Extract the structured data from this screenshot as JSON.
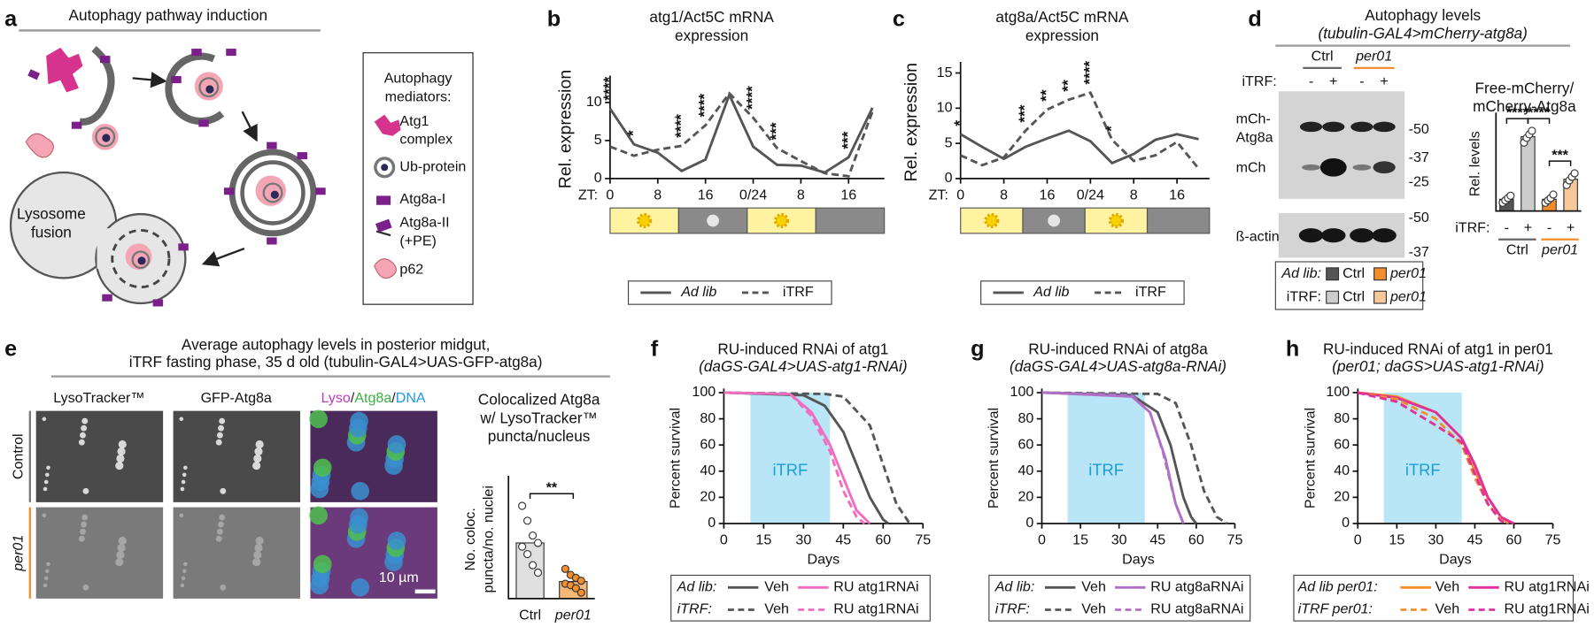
{
  "figure": {
    "panel_letters": [
      "a",
      "b",
      "c",
      "d",
      "e",
      "f",
      "g",
      "h"
    ],
    "a": {
      "title": "Autophagy pathway induction",
      "lysosome": [
        "Lysosome",
        "fusion"
      ],
      "legend_title": [
        "Autophagy",
        "mediators:"
      ],
      "legend_items": [
        [
          "Atg1",
          "complex"
        ],
        [
          "Ub-protein"
        ],
        [
          "Atg8a-I"
        ],
        [
          "Atg8a-II",
          "(+PE)"
        ],
        [
          "p62"
        ]
      ]
    },
    "d_blot": {
      "title": [
        "Autophagy levels",
        "(tubulin-GAL4>mCherry-atg8a)"
      ],
      "groups": [
        "Ctrl",
        "per01"
      ],
      "itrf_label": "iTRF:",
      "lanes": [
        "-",
        "+",
        "-",
        "+"
      ],
      "bands": [
        "mCh-",
        "Atg8a",
        "mCh",
        "ß-actin"
      ],
      "markers": [
        "-50",
        "-37",
        "-25",
        "-50",
        "-37"
      ]
    },
    "e_images": {
      "title": [
        "Average autophagy levels in posterior midgut,",
        "iTRF fasting phase, 35 d old (tubulin-GAL4>UAS-GFP-atg8a)"
      ],
      "columns": [
        "LysoTracker™",
        "GFP-Atg8a"
      ],
      "merge": [
        "Lyso",
        "/",
        "Atg8a",
        "/",
        "DNA"
      ],
      "rows": [
        "Control",
        "per01"
      ],
      "scale": "10 µm"
    }
  },
  "chart_data": [
    {
      "type": "line",
      "title": [
        "atg1/Act5C mRNA",
        "expression"
      ],
      "y_label": "Rel. expression",
      "x_label": "ZT:",
      "x": [
        0,
        4,
        8,
        12,
        16,
        20,
        24,
        28,
        32,
        36,
        40,
        44
      ],
      "xlim": [
        0,
        46
      ],
      "xticks": [
        0,
        8,
        16,
        {
          "value": 24,
          "label": "0/24"
        },
        {
          "value": 32,
          "label": "8"
        },
        {
          "value": 40,
          "label": "16"
        }
      ],
      "ylim": [
        0,
        13
      ],
      "yticks": [
        0,
        5,
        10
      ],
      "series": [
        {
          "name": "Ad lib",
          "color": "#555555",
          "dash": false,
          "values": [
            9.2,
            4.5,
            3.4,
            1.0,
            2.5,
            11.0,
            4.2,
            1.8,
            1.7,
            0.8,
            2.8,
            9.3
          ]
        },
        {
          "name": "iTRF",
          "color": "#555555",
          "dash": true,
          "values": [
            4.2,
            3.0,
            3.8,
            4.3,
            7.0,
            11.2,
            8.0,
            4.0,
            2.3,
            0.7,
            0.3,
            8.8
          ]
        }
      ],
      "annotations": [
        {
          "x": 0,
          "label": "****"
        },
        {
          "x": 4,
          "label": "*"
        },
        {
          "x": 12,
          "label": "****"
        },
        {
          "x": 16,
          "label": "****"
        },
        {
          "x": 24,
          "label": "****"
        },
        {
          "x": 28,
          "label": "***"
        },
        {
          "x": 40,
          "label": "***"
        }
      ]
    },
    {
      "type": "line",
      "title": [
        "atg8a/Act5C mRNA",
        "expression"
      ],
      "y_label": "Rel. expression",
      "x_label": "ZT:",
      "x": [
        0,
        4,
        8,
        12,
        16,
        20,
        24,
        28,
        32,
        36,
        40,
        44
      ],
      "xlim": [
        0,
        46
      ],
      "xticks": [
        0,
        8,
        16,
        {
          "value": 24,
          "label": "0/24"
        },
        {
          "value": 32,
          "label": "8"
        },
        {
          "value": 40,
          "label": "16"
        }
      ],
      "ylim": [
        0,
        16
      ],
      "yticks": [
        0,
        5,
        10,
        15
      ],
      "series": [
        {
          "name": "Ad lib",
          "color": "#555555",
          "dash": false,
          "values": [
            6.3,
            4.5,
            2.8,
            4.5,
            5.7,
            6.8,
            5.3,
            2.2,
            3.5,
            5.5,
            6.3,
            5.6
          ]
        },
        {
          "name": "iTRF",
          "color": "#555555",
          "dash": true,
          "values": [
            3.3,
            1.9,
            3.0,
            6.8,
            9.8,
            11.2,
            12.2,
            5.5,
            2.5,
            3.3,
            5.2,
            1.4
          ]
        }
      ],
      "annotations": [
        {
          "x": 0,
          "label": "*"
        },
        {
          "x": 12,
          "label": "***"
        },
        {
          "x": 16,
          "label": "**"
        },
        {
          "x": 20,
          "label": "**"
        },
        {
          "x": 24,
          "label": "****"
        },
        {
          "x": 28,
          "label": "*"
        }
      ]
    },
    {
      "type": "bar",
      "title": [
        "Free-mCherry/",
        "mCherry-Atg8a"
      ],
      "y_label": "Rel. levels",
      "x_label": "iTRF:",
      "categories": [
        "-",
        "+",
        "-",
        "+"
      ],
      "groups": [
        "Ctrl",
        "per01"
      ],
      "values": [
        1.0,
        6.3,
        1.0,
        2.7
      ],
      "colors": [
        "#555555",
        "#cccccc",
        "#f28e2b",
        "#f7c899"
      ],
      "ylim": [
        0,
        8
      ],
      "points": [
        [
          0.7,
          0.9,
          1.1,
          1.3
        ],
        [
          5.8,
          6.2,
          6.5,
          6.8
        ],
        [
          0.7,
          0.9,
          1.1,
          1.4
        ],
        [
          2.2,
          2.6,
          2.9,
          3.2
        ]
      ],
      "annotations": [
        {
          "from": 0,
          "to": 1,
          "label": "****"
        },
        {
          "from": 1,
          "to": 2,
          "label": "****"
        },
        {
          "from": 2,
          "to": 3,
          "label": "***"
        }
      ],
      "legend_groups": [
        "Ad lib:",
        "iTRF:"
      ],
      "legend": [
        [
          "Ctrl",
          "per01"
        ],
        [
          "Ctrl",
          "per01"
        ]
      ]
    },
    {
      "type": "bar",
      "title": [
        "Colocalized Atg8a",
        "w/ LysoTracker™",
        "puncta/nucleus"
      ],
      "y_label": [
        "No. coloc.",
        "puncta/no. nuclei"
      ],
      "categories": [
        "Ctrl",
        "per01"
      ],
      "values": [
        7.5,
        2.3
      ],
      "colors": [
        "#e0e0e0",
        "#f5b878"
      ],
      "ylim": [
        0,
        16
      ],
      "points": [
        [
          12.5,
          10.5,
          8.5,
          7.5,
          7.0,
          6.0,
          4.5,
          3.5
        ],
        [
          4.0,
          3.2,
          2.8,
          2.4,
          2.0,
          1.8,
          1.4,
          0.8
        ]
      ],
      "annotations": [
        {
          "from": 0,
          "to": 1,
          "label": "**"
        }
      ]
    },
    {
      "type": "line",
      "title": [
        "RU-induced RNAi of atg1",
        "(daGS-GAL4>UAS-atg1-RNAi)"
      ],
      "y_label": "Percent survival",
      "x_label": "Days",
      "xlim": [
        0,
        75
      ],
      "xticks": [
        0,
        15,
        30,
        45,
        60,
        75
      ],
      "ylim": [
        0,
        100
      ],
      "yticks": [
        0,
        20,
        40,
        60,
        80,
        100
      ],
      "shade": {
        "x": [
          10,
          40
        ],
        "label": "iTRF",
        "color": "#b8e6f7"
      },
      "legend_groups": [
        "Ad lib:",
        "iTRF:"
      ],
      "series": [
        {
          "name": "Veh",
          "color": "#555555",
          "dash": false,
          "x": [
            0,
            30,
            38,
            45,
            50,
            55,
            60,
            62
          ],
          "values": [
            100,
            98,
            90,
            70,
            45,
            20,
            3,
            0
          ]
        },
        {
          "name": "RU atg1RNAi",
          "color": "#f26cbf",
          "dash": false,
          "x": [
            0,
            25,
            33,
            40,
            45,
            50,
            55
          ],
          "values": [
            100,
            99,
            85,
            60,
            35,
            10,
            0
          ]
        },
        {
          "name": "Veh",
          "color": "#555555",
          "dash": true,
          "x": [
            0,
            38,
            45,
            55,
            60,
            65,
            70
          ],
          "values": [
            100,
            99,
            97,
            75,
            45,
            15,
            0
          ]
        },
        {
          "name": "RU atg1RNAi",
          "color": "#f26cbf",
          "dash": true,
          "x": [
            0,
            25,
            33,
            40,
            45,
            50,
            53
          ],
          "values": [
            100,
            99,
            82,
            55,
            25,
            5,
            0
          ]
        }
      ]
    },
    {
      "type": "line",
      "title": [
        "RU-induced RNAi of atg8a",
        "(daGS-GAL4>UAS-atg8a-RNAi)"
      ],
      "y_label": "Percent survival",
      "x_label": "Days",
      "xlim": [
        0,
        75
      ],
      "xticks": [
        0,
        15,
        30,
        45,
        60,
        75
      ],
      "ylim": [
        0,
        100
      ],
      "yticks": [
        0,
        20,
        40,
        60,
        80,
        100
      ],
      "shade": {
        "x": [
          10,
          40
        ],
        "label": "iTRF",
        "color": "#b8e6f7"
      },
      "legend_groups": [
        "Ad lib:",
        "iTRF:"
      ],
      "series": [
        {
          "name": "Veh",
          "color": "#555555",
          "dash": false,
          "x": [
            0,
            35,
            45,
            50,
            55,
            58,
            60
          ],
          "values": [
            100,
            98,
            85,
            60,
            20,
            5,
            0
          ]
        },
        {
          "name": "RU atg8aRNAi",
          "color": "#b070c8",
          "dash": false,
          "x": [
            0,
            35,
            42,
            48,
            52,
            55
          ],
          "values": [
            100,
            97,
            85,
            50,
            15,
            0
          ]
        },
        {
          "name": "Veh",
          "color": "#555555",
          "dash": true,
          "x": [
            0,
            45,
            52,
            58,
            63,
            68,
            72
          ],
          "values": [
            100,
            99,
            92,
            60,
            25,
            5,
            0
          ]
        },
        {
          "name": "RU atg8aRNAi",
          "color": "#b070c8",
          "dash": true,
          "x": [
            0,
            35,
            42,
            47,
            52,
            55
          ],
          "values": [
            100,
            98,
            85,
            55,
            15,
            0
          ]
        }
      ]
    },
    {
      "type": "line",
      "title": [
        "RU-induced RNAi of atg1 in per01",
        "(per01; daGS>UAS-atg1-RNAi)"
      ],
      "y_label": "Percent survival",
      "x_label": "Days",
      "xlim": [
        0,
        75
      ],
      "xticks": [
        0,
        15,
        30,
        45,
        60,
        75
      ],
      "ylim": [
        0,
        100
      ],
      "yticks": [
        0,
        20,
        40,
        60,
        80,
        100
      ],
      "shade": {
        "x": [
          10,
          40
        ],
        "label": "iTRF",
        "color": "#b8e6f7"
      },
      "legend_groups": [
        "Ad lib per01:",
        "iTRF per01:"
      ],
      "series": [
        {
          "name": "Veh",
          "color": "#f28e2b",
          "dash": false,
          "x": [
            0,
            15,
            30,
            40,
            45,
            50,
            55,
            58
          ],
          "values": [
            100,
            97,
            85,
            65,
            40,
            20,
            5,
            0
          ]
        },
        {
          "name": "RU atg1RNAi",
          "color": "#e0309a",
          "dash": false,
          "x": [
            0,
            15,
            30,
            40,
            45,
            50,
            55,
            60
          ],
          "values": [
            100,
            96,
            85,
            65,
            45,
            20,
            5,
            0
          ]
        },
        {
          "name": "Veh",
          "color": "#f28e2b",
          "dash": true,
          "x": [
            0,
            15,
            30,
            40,
            45,
            50,
            55,
            58
          ],
          "values": [
            100,
            95,
            80,
            60,
            35,
            15,
            3,
            0
          ]
        },
        {
          "name": "RU atg1RNAi",
          "color": "#e0309a",
          "dash": true,
          "x": [
            0,
            15,
            30,
            40,
            45,
            50,
            55,
            58
          ],
          "values": [
            100,
            93,
            75,
            62,
            38,
            15,
            2,
            0
          ]
        }
      ]
    }
  ]
}
